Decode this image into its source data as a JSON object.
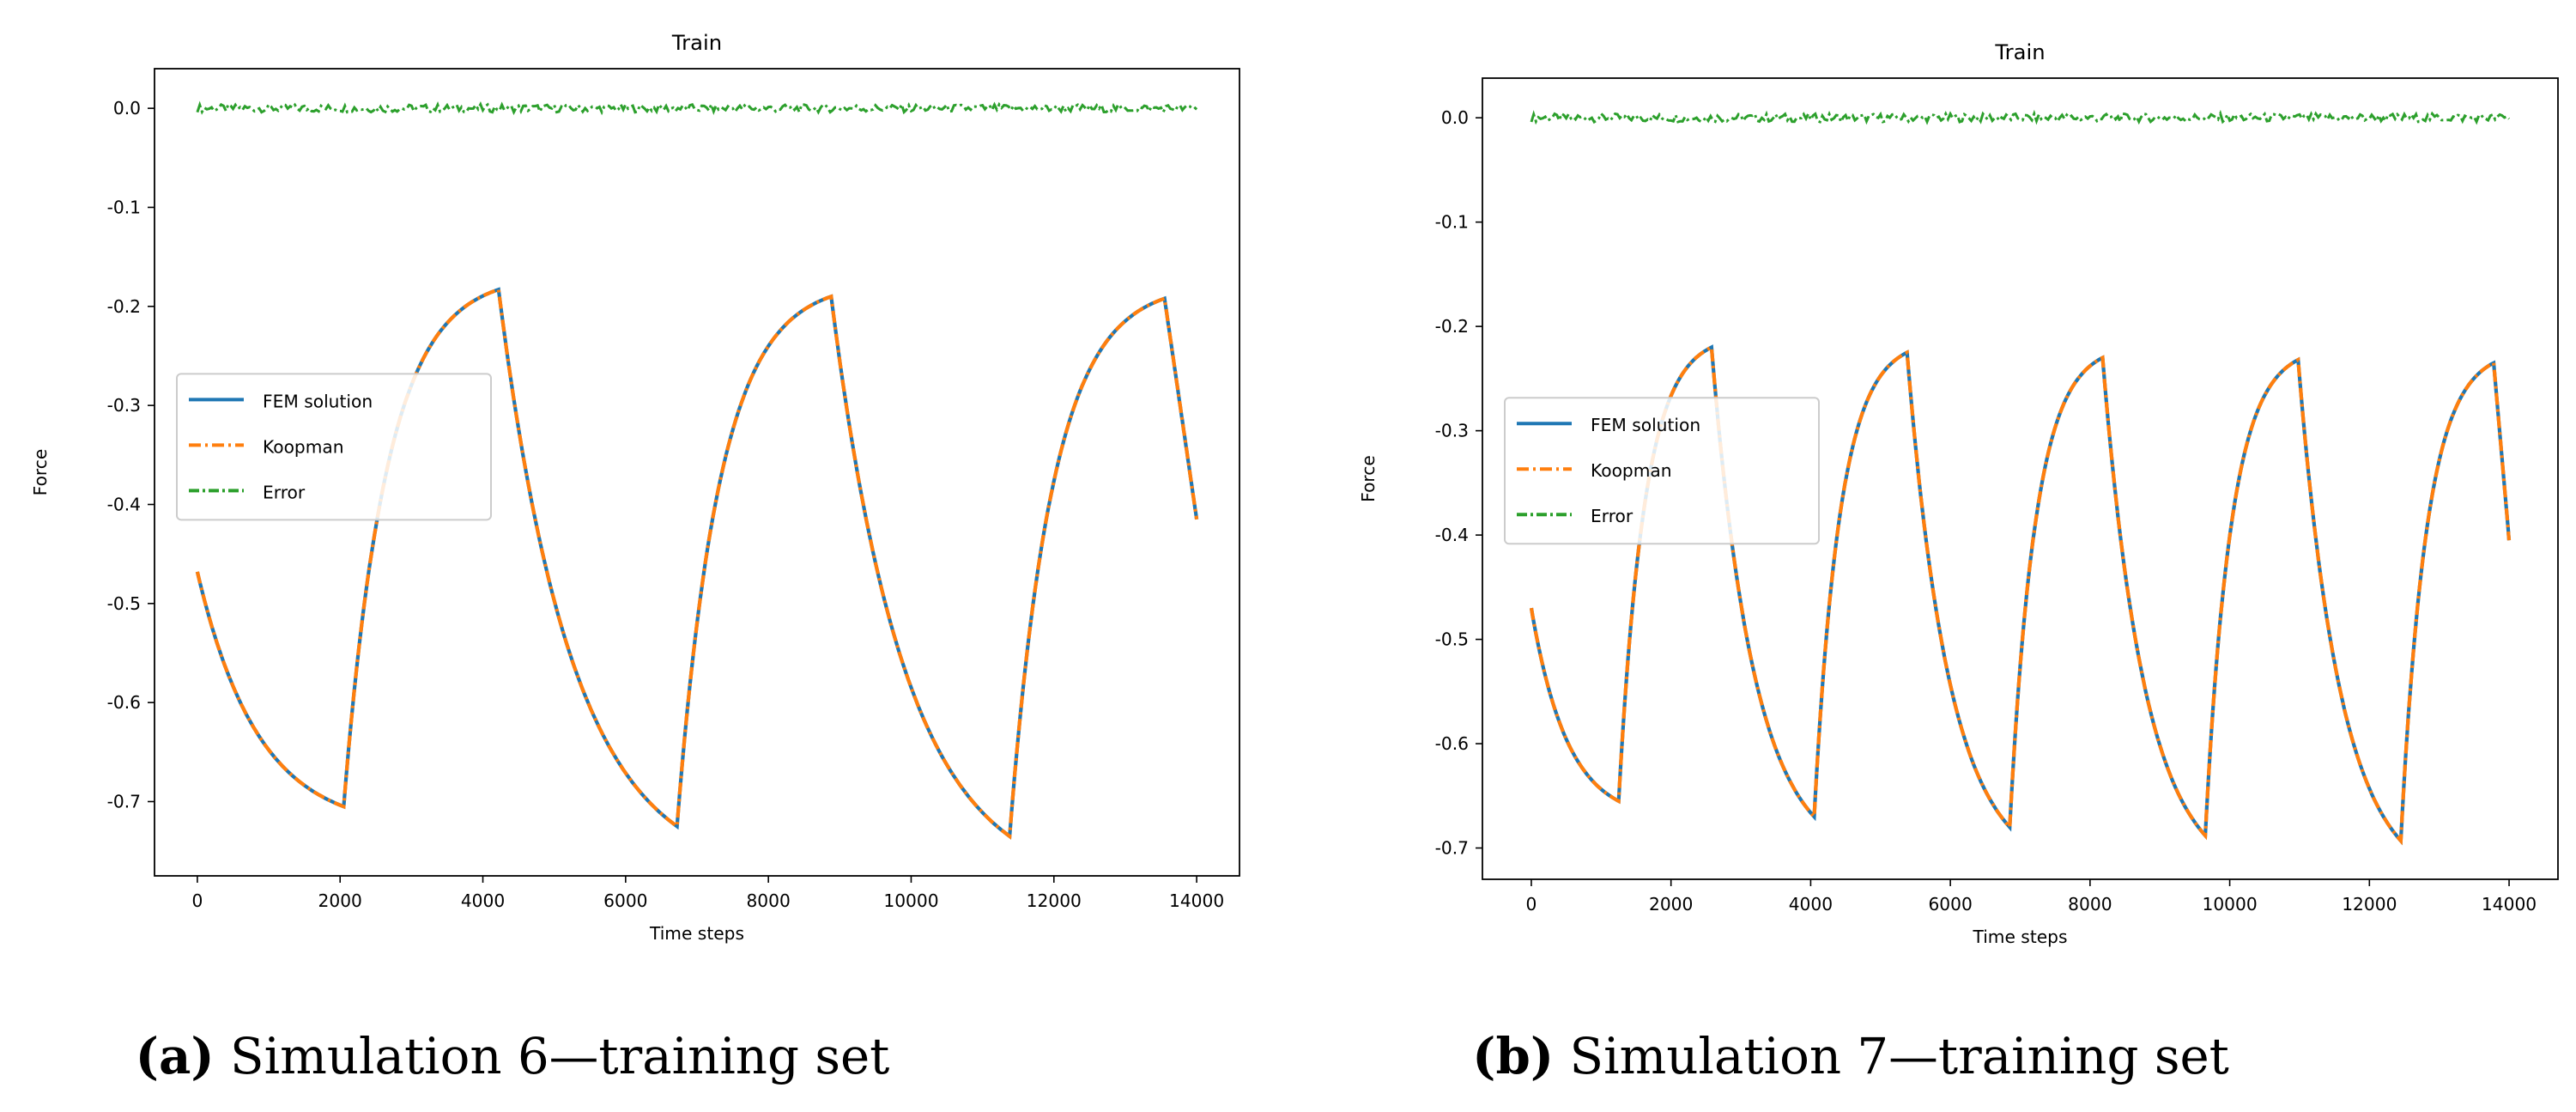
{
  "chart_data": [
    {
      "type": "line",
      "title": "Train",
      "xlabel": "Time steps",
      "ylabel": "Force",
      "xlim": [
        -600,
        14600
      ],
      "ylim": [
        -0.775,
        0.04
      ],
      "xticks": [
        0,
        2000,
        4000,
        6000,
        8000,
        10000,
        12000,
        14000
      ],
      "yticks": [
        0.0,
        -0.1,
        -0.2,
        -0.3,
        -0.4,
        -0.5,
        -0.6,
        -0.7
      ],
      "legend": {
        "position": "center-left",
        "entries": [
          "FEM solution",
          "Koopman",
          "Error"
        ]
      },
      "colors": {
        "fem": "#1f77b4",
        "koopman": "#ff7f0e",
        "error": "#2ca02c"
      },
      "caption_label": "(a)",
      "caption_text": "Simulation 6—training set",
      "cycles": [
        {
          "x0": 0,
          "x1": 2050,
          "y0": -0.468,
          "y1": -0.705,
          "shape": "decay"
        },
        {
          "x0": 2050,
          "x1": 4220,
          "y0": -0.705,
          "y1": -0.183,
          "shape": "rise"
        },
        {
          "x0": 4220,
          "x1": 6720,
          "y0": -0.183,
          "y1": -0.725,
          "shape": "decay"
        },
        {
          "x0": 6720,
          "x1": 8880,
          "y0": -0.725,
          "y1": -0.19,
          "shape": "rise"
        },
        {
          "x0": 8880,
          "x1": 11380,
          "y0": -0.19,
          "y1": -0.735,
          "shape": "decay"
        },
        {
          "x0": 11380,
          "x1": 13550,
          "y0": -0.735,
          "y1": -0.192,
          "shape": "rise"
        },
        {
          "x0": 13550,
          "x1": 14000,
          "y0": -0.192,
          "y1": -0.415,
          "shape": "drop"
        }
      ],
      "error_band": 0.004
    },
    {
      "type": "line",
      "title": "Train",
      "xlabel": "Time steps",
      "ylabel": "Force",
      "xlim": [
        -700,
        14700
      ],
      "ylim": [
        -0.73,
        0.038
      ],
      "xticks": [
        0,
        2000,
        4000,
        6000,
        8000,
        10000,
        12000,
        14000
      ],
      "yticks": [
        0.0,
        -0.1,
        -0.2,
        -0.3,
        -0.4,
        -0.5,
        -0.6,
        -0.7
      ],
      "legend": {
        "position": "center-left",
        "entries": [
          "FEM solution",
          "Koopman",
          "Error"
        ]
      },
      "colors": {
        "fem": "#1f77b4",
        "koopman": "#ff7f0e",
        "error": "#2ca02c"
      },
      "caption_label": "(b)",
      "caption_text": "Simulation 7—training set",
      "cycles": [
        {
          "x0": 0,
          "x1": 1250,
          "y0": -0.47,
          "y1": -0.655,
          "shape": "decay"
        },
        {
          "x0": 1250,
          "x1": 2580,
          "y0": -0.655,
          "y1": -0.22,
          "shape": "rise"
        },
        {
          "x0": 2580,
          "x1": 4050,
          "y0": -0.22,
          "y1": -0.67,
          "shape": "decay"
        },
        {
          "x0": 4050,
          "x1": 5380,
          "y0": -0.67,
          "y1": -0.225,
          "shape": "rise"
        },
        {
          "x0": 5380,
          "x1": 6850,
          "y0": -0.225,
          "y1": -0.68,
          "shape": "decay"
        },
        {
          "x0": 6850,
          "x1": 8180,
          "y0": -0.68,
          "y1": -0.23,
          "shape": "rise"
        },
        {
          "x0": 8180,
          "x1": 9650,
          "y0": -0.23,
          "y1": -0.688,
          "shape": "decay"
        },
        {
          "x0": 9650,
          "x1": 10980,
          "y0": -0.688,
          "y1": -0.232,
          "shape": "rise"
        },
        {
          "x0": 10980,
          "x1": 12450,
          "y0": -0.232,
          "y1": -0.693,
          "shape": "decay"
        },
        {
          "x0": 12450,
          "x1": 13780,
          "y0": -0.693,
          "y1": -0.235,
          "shape": "rise"
        },
        {
          "x0": 13780,
          "x1": 14000,
          "y0": -0.235,
          "y1": -0.405,
          "shape": "drop"
        }
      ],
      "error_band": 0.004
    }
  ]
}
